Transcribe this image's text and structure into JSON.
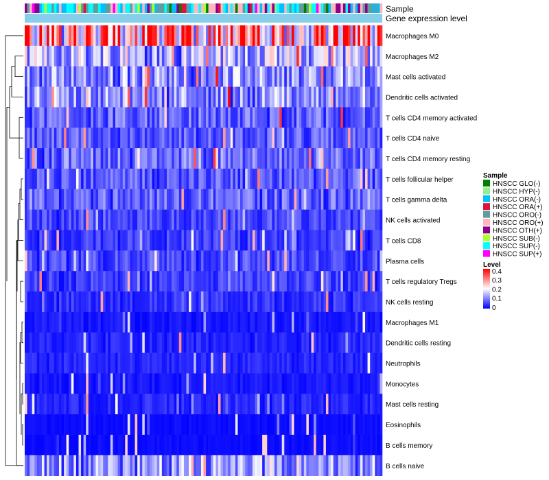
{
  "chart_data": {
    "type": "heatmap",
    "title": "",
    "annotation_tracks": {
      "sample": "Sample",
      "level": "Gene expression level"
    },
    "rows": [
      "Macrophages M0",
      "Macrophages M2",
      "Mast cells activated",
      "Dendritic cells activated",
      "T cells CD4 memory activated",
      "T cells CD4 naive",
      "T cells CD4 memory resting",
      "T cells follicular helper",
      "T cells gamma delta",
      "NK cells activated",
      "T cells CD8",
      "Plasma cells",
      "T cells regulatory  Tregs",
      "NK cells resting",
      "Macrophages M1",
      "Dendritic cells resting",
      "Neutrophils",
      "Monocytes",
      "Mast cells resting",
      "Eosinophils",
      "B cells memory",
      "B cells naive"
    ],
    "row_typical_level": [
      0.3,
      0.15,
      0.12,
      0.12,
      0.08,
      0.07,
      0.09,
      0.07,
      0.08,
      0.06,
      0.05,
      0.06,
      0.05,
      0.04,
      0.02,
      0.03,
      0.03,
      0.02,
      0.03,
      0.01,
      0.01,
      0.12
    ],
    "column_count": 146,
    "color_scale": {
      "title": "Level",
      "min": 0,
      "max": 0.4,
      "ticks": [
        "0.4",
        "0.3",
        "0.2",
        "0.1",
        "0"
      ],
      "low_color": "#0000ff",
      "mid_color": "#ffffff",
      "high_color": "#ff0000"
    },
    "sample_legend": {
      "title": "Sample",
      "items": [
        {
          "label": "HNSCC GLO(-)",
          "color": "#008000"
        },
        {
          "label": "HNSCC HYP(-)",
          "color": "#90ee90"
        },
        {
          "label": "HNSCC ORA(-)",
          "color": "#00bfff"
        },
        {
          "label": "HNSCC ORA(+)",
          "color": "#dc143c"
        },
        {
          "label": "HNSCC ORO(-)",
          "color": "#5f9ea0"
        },
        {
          "label": "HNSCC ORO(+)",
          "color": "#ffb6c1"
        },
        {
          "label": "HNSCC OTH(+)",
          "color": "#8b008b"
        },
        {
          "label": "HNSCC SUB(-)",
          "color": "#adff2f"
        },
        {
          "label": "HNSCC SUP(-)",
          "color": "#00ffff"
        },
        {
          "label": "HNSCC SUP(+)",
          "color": "#ff00ff"
        }
      ]
    },
    "level_track_color": "#87ceeb",
    "dendrogram": "hierarchical clustering on rows"
  }
}
